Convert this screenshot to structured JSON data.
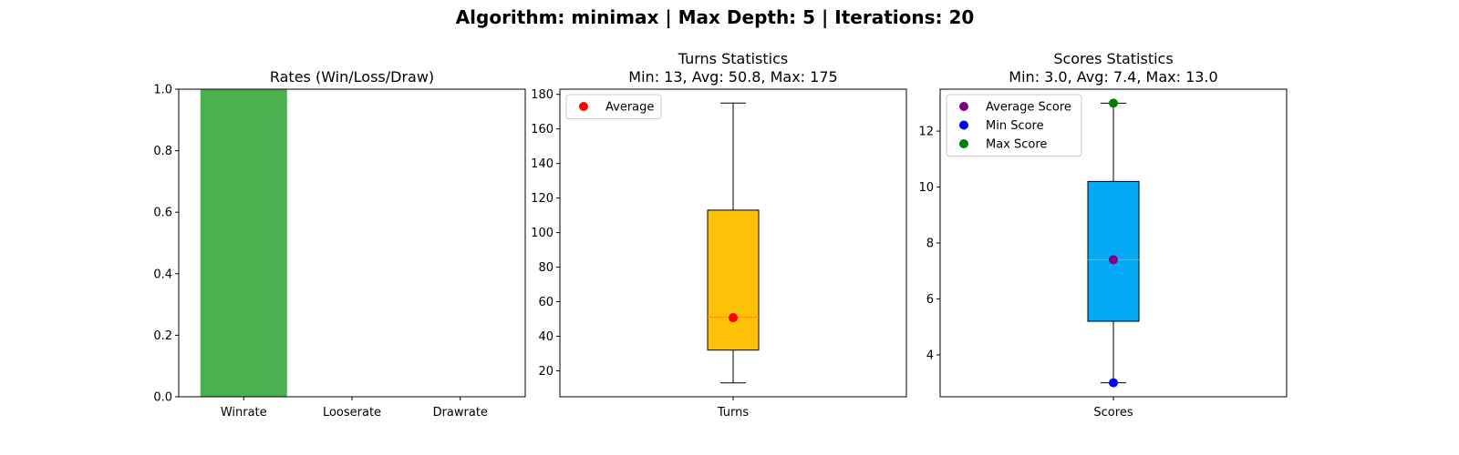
{
  "suptitle": "Algorithm: minimax | Max Depth: 5 | Iterations: 20",
  "chart_data": [
    {
      "type": "bar",
      "title": "Rates (Win/Loss/Draw)",
      "categories": [
        "Winrate",
        "Looserate",
        "Drawrate"
      ],
      "values": [
        1.0,
        0.0,
        0.0
      ],
      "ylim": [
        0,
        1.0
      ],
      "yticks": [
        0.0,
        0.2,
        0.4,
        0.6,
        0.8,
        1.0
      ],
      "ytick_labels": [
        "0.0",
        "0.2",
        "0.4",
        "0.6",
        "0.8",
        "1.0"
      ],
      "bar_color": "#4caf50",
      "grid": false
    },
    {
      "type": "boxplot",
      "title": "Turns Statistics",
      "subtitle": "Min: 13, Avg: 50.8, Max: 175",
      "categories": [
        "Turns"
      ],
      "box": {
        "whisker_low": 13,
        "q1": 32,
        "median": 51,
        "q3": 113,
        "whisker_high": 175
      },
      "ylim": [
        5,
        183
      ],
      "yticks": [
        20,
        40,
        60,
        80,
        100,
        120,
        140,
        160,
        180
      ],
      "ytick_labels": [
        "20",
        "40",
        "60",
        "80",
        "100",
        "120",
        "140",
        "160",
        "180"
      ],
      "box_color": "#ffc107",
      "median_color": "#ff8c00",
      "points": [
        {
          "name": "Average",
          "value": 50.8,
          "color": "#ff0000"
        }
      ],
      "legend": {
        "position": "upper-left",
        "entries": [
          "Average"
        ]
      },
      "grid": false
    },
    {
      "type": "boxplot",
      "title": "Scores Statistics",
      "subtitle": "Min: 3.0, Avg: 7.4, Max: 13.0",
      "categories": [
        "Scores"
      ],
      "box": {
        "whisker_low": 3.0,
        "q1": 5.2,
        "median": 7.4,
        "q3": 10.2,
        "whisker_high": 13.0
      },
      "ylim": [
        2.5,
        13.5
      ],
      "yticks": [
        4,
        6,
        8,
        10,
        12
      ],
      "ytick_labels": [
        "4",
        "6",
        "8",
        "10",
        "12"
      ],
      "box_color": "#03a9f4",
      "median_color": "#ff8c00",
      "points": [
        {
          "name": "Average Score",
          "value": 7.4,
          "color": "#800080"
        },
        {
          "name": "Min Score",
          "value": 3.0,
          "color": "#0000ff"
        },
        {
          "name": "Max Score",
          "value": 13.0,
          "color": "#008000"
        }
      ],
      "legend": {
        "position": "upper-left",
        "entries": [
          "Average Score",
          "Min Score",
          "Max Score"
        ]
      },
      "grid": false
    }
  ]
}
